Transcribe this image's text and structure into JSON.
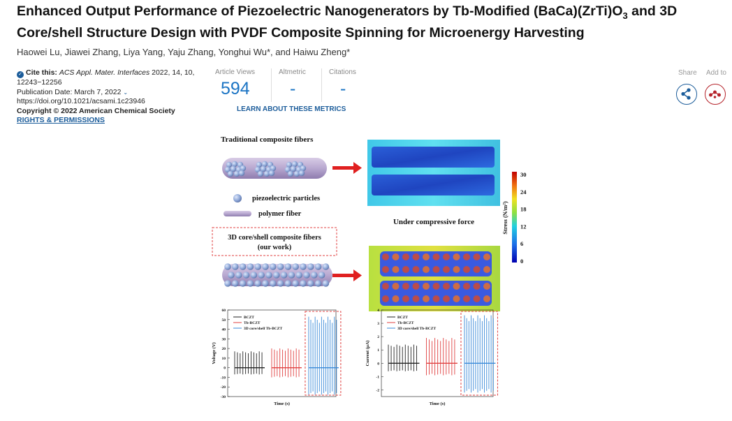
{
  "article": {
    "title_part1": "Enhanced Output Performance of Piezoelectric Nanogenerators by Tb-Modified (BaCa)(ZrTi)O",
    "title_sub": "3",
    "title_part2": " and 3D Core/shell Structure Design with PVDF Composite Spinning for Microenergy Harvesting",
    "authors": "Haowei Lu, Jiawei Zhang, Liya Yang, Yaju Zhang, Yonghui Wu*, and Haiwu Zheng*"
  },
  "citation": {
    "label": "Cite this:",
    "journal": "ACS Appl. Mater. Interfaces",
    "details": " 2022, 14, 10, 12243−12256",
    "pub_date": "Publication Date: March 7, 2022",
    "doi": "https://doi.org/10.1021/acsami.1c23946",
    "copyright": "Copyright © 2022 American Chemical Society",
    "rights": "RIGHTS & PERMISSIONS"
  },
  "metrics": {
    "views_label": "Article Views",
    "views_value": "594",
    "altmetric_label": "Altmetric",
    "altmetric_value": "-",
    "citations_label": "Citations",
    "citations_value": "-",
    "learn_link": "LEARN ABOUT THESE METRICS"
  },
  "actions": {
    "share_label": "Share",
    "add_label": "Add to",
    "share_icon": "share-icon",
    "add_icon": "mendeley-icon"
  },
  "toc": {
    "traditional_label": "Traditional composite fibers",
    "particles_label": "piezoelectric particles",
    "fiber_label": "polymer fiber",
    "core_shell_label_1": "3D core/shell composite fibers",
    "core_shell_label_2": "(our work)",
    "compress_label": "Under compressive force",
    "stress_label": "Stress (N/m²)",
    "stress_ticks": [
      "30",
      "24",
      "18",
      "12",
      "6",
      "0"
    ],
    "colors": {
      "particle": "#8fa8d8",
      "fiber": "#b8a8d0",
      "arrow": "#e02020",
      "box": "#e04040"
    }
  },
  "chart_data": [
    {
      "type": "line",
      "xlabel": "Time (s)",
      "ylabel": "Voltage (V)",
      "ylim": [
        -30,
        60
      ],
      "yticks": [
        "60",
        "50",
        "40",
        "30",
        "20",
        "10",
        "0",
        "-10",
        "-20",
        "-30"
      ],
      "legend": "top-left",
      "series": [
        {
          "name": "BCZT",
          "color": "#222222",
          "min": -7,
          "max": 17
        },
        {
          "name": "Tb-BCZT",
          "color": "#e04040",
          "min": -10,
          "max": 20
        },
        {
          "name": "3D core/shell Tb-BCZT",
          "color": "#3a8ad8",
          "min": -28,
          "max": 53
        }
      ]
    },
    {
      "type": "line",
      "xlabel": "Time (s)",
      "ylabel": "Current (μA)",
      "ylim": [
        -2.5,
        4
      ],
      "yticks": [
        "4",
        "3",
        "2",
        "1",
        "0",
        "-1",
        "-2"
      ],
      "legend": "top-left",
      "series": [
        {
          "name": "BCZT",
          "color": "#222222",
          "min": -0.6,
          "max": 1.4
        },
        {
          "name": "Tb-BCZT",
          "color": "#e04040",
          "min": -0.9,
          "max": 1.9
        },
        {
          "name": "3D core/shell Tb-BCZT",
          "color": "#3a8ad8",
          "min": -2.2,
          "max": 3.6
        }
      ]
    }
  ]
}
